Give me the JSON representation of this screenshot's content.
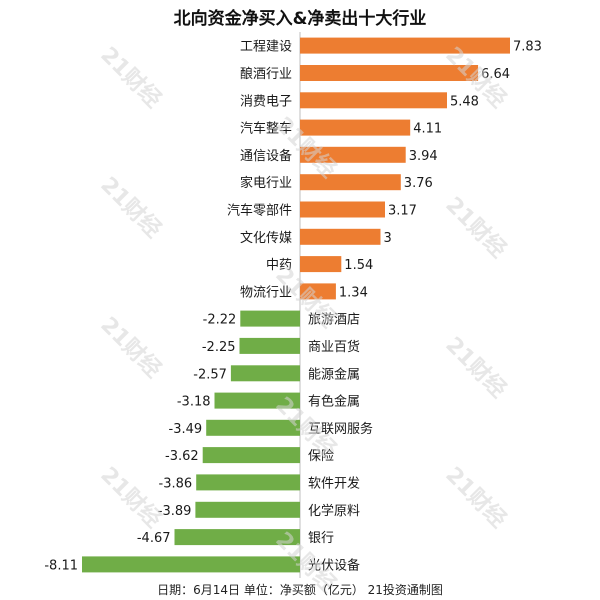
{
  "chart_data": {
    "type": "bar",
    "orientation": "horizontal",
    "title": "北向资金净买入&净卖出十大行业",
    "categories": [
      "工程建设",
      "酿酒行业",
      "消费电子",
      "汽车整车",
      "通信设备",
      "家电行业",
      "汽车零部件",
      "文化传媒",
      "中药",
      "物流行业",
      "旅游酒店",
      "商业百货",
      "能源金属",
      "有色金属",
      "互联网服务",
      "保险",
      "软件开发",
      "化学原料",
      "银行",
      "光伏设备"
    ],
    "values": [
      7.83,
      6.64,
      5.48,
      4.11,
      3.94,
      3.76,
      3.17,
      3,
      1.54,
      1.34,
      -2.22,
      -2.25,
      -2.57,
      -3.18,
      -3.49,
      -3.62,
      -3.86,
      -3.89,
      -4.67,
      -8.11
    ],
    "value_labels": [
      "7.83",
      "6.64",
      "5.48",
      "4.11",
      "3.94",
      "3.76",
      "3.17",
      "3",
      "1.54",
      "1.34",
      "-2.22",
      "-2.25",
      "-2.57",
      "-3.18",
      "-3.49",
      "-3.62",
      "-3.86",
      "-3.89",
      "-4.67",
      "-8.11"
    ],
    "positive_color": "#ed7d31",
    "negative_color": "#70ad47",
    "xlim": [
      -8.11,
      7.83
    ],
    "grid": false,
    "legend": "none"
  },
  "footer": "日期：6月14日 单位：净买额（亿元） 21投资通制图",
  "watermark": "21财经"
}
